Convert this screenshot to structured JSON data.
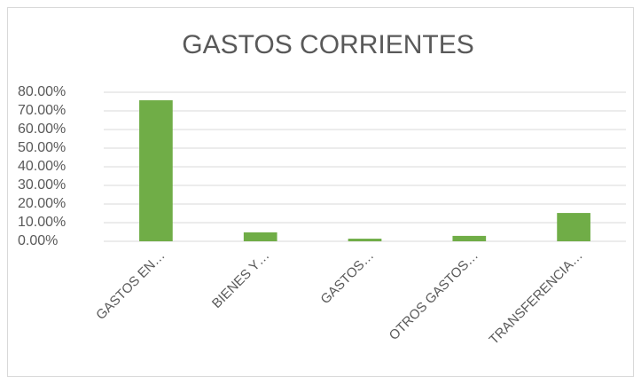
{
  "chart_data": {
    "type": "bar",
    "title": "GASTOS CORRIENTES",
    "categories": [
      "GASTOS EN…",
      "BIENES Y…",
      "GASTOS…",
      "OTROS GASTOS…",
      "TRANSFERENCIA…"
    ],
    "values": [
      75.7,
      4.8,
      1.4,
      2.9,
      15.2
    ],
    "color": "#70ad47",
    "ylim": [
      0,
      80
    ],
    "yticks": [
      {
        "value": 0,
        "label": "0.00%"
      },
      {
        "value": 10,
        "label": "10.00%"
      },
      {
        "value": 20,
        "label": "20.00%"
      },
      {
        "value": 30,
        "label": "30.00%"
      },
      {
        "value": 40,
        "label": "40.00%"
      },
      {
        "value": 50,
        "label": "50.00%"
      },
      {
        "value": 60,
        "label": "60.00%"
      },
      {
        "value": 70,
        "label": "70.00%"
      },
      {
        "value": 80,
        "label": "80.00%"
      }
    ],
    "grid": true
  }
}
